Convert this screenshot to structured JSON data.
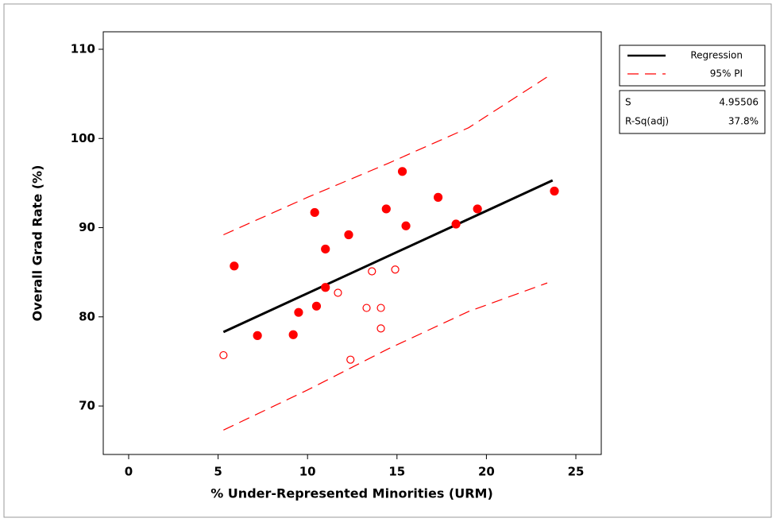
{
  "chart_data": {
    "type": "scatter",
    "x_label": "% Under-Represented Minorities (URM)",
    "y_label": "Overall Grad Rate (%)",
    "xlim": [
      -1.42,
      26.42
    ],
    "ylim": [
      64.57,
      111.96
    ],
    "xticks": [
      0,
      5,
      10,
      15,
      20,
      25
    ],
    "yticks": [
      70,
      80,
      90,
      100,
      110
    ],
    "points_filled": {
      "color": "#ff0000",
      "x": [
        5.9,
        7.2,
        9.2,
        9.5,
        10.4,
        10.5,
        11.0,
        11.0,
        12.3,
        14.4,
        15.3,
        15.5,
        17.3,
        18.3,
        19.5,
        23.8
      ],
      "values": [
        85.7,
        77.9,
        78.0,
        80.5,
        91.7,
        81.2,
        83.3,
        87.6,
        89.2,
        92.1,
        96.3,
        90.2,
        93.4,
        90.4,
        92.1,
        94.1
      ]
    },
    "points_open": {
      "color": "#ff0000",
      "x": [
        5.3,
        11.7,
        12.4,
        13.3,
        13.6,
        14.1,
        14.1,
        14.9
      ],
      "values": [
        75.7,
        82.7,
        75.2,
        81.0,
        85.1,
        81.0,
        78.7,
        85.3
      ]
    },
    "regression": {
      "name": "Regression",
      "color": "#000000",
      "x": [
        5.3,
        23.7
      ],
      "values": [
        78.3,
        95.3
      ]
    },
    "prediction_interval": {
      "name": "95% PI",
      "color": "#ff0000",
      "x": [
        5.3,
        10,
        14.5,
        19,
        23.4
      ],
      "upper": [
        89.2,
        93.4,
        97.2,
        101.2,
        106.9
      ],
      "lower": [
        67.3,
        71.8,
        76.4,
        80.6,
        83.8
      ]
    },
    "stats": [
      {
        "label": "S",
        "value": "4.95506"
      },
      {
        "label": "R-Sq(adj)",
        "value": "37.8%"
      }
    ]
  }
}
